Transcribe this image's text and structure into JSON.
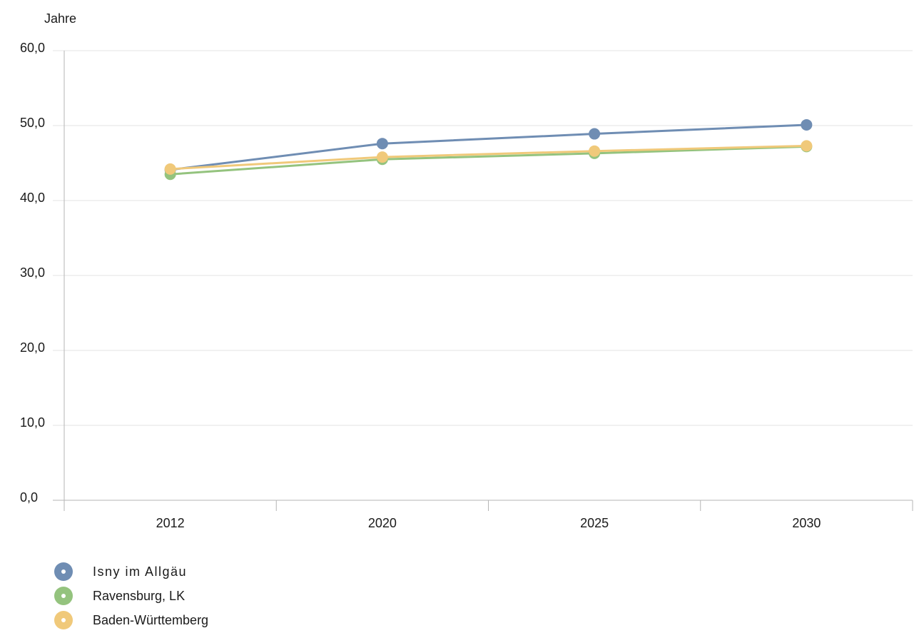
{
  "chart_data": {
    "type": "line",
    "unit_label": "Jahre",
    "categories": [
      "2012",
      "2020",
      "2025",
      "2030"
    ],
    "y_ticks": [
      "0,0",
      "10,0",
      "20,0",
      "30,0",
      "40,0",
      "50,0",
      "60,0"
    ],
    "ylim": [
      0,
      60
    ],
    "grid": true,
    "legend_position": "bottom-left",
    "series": [
      {
        "name": "Isny im Allgäu",
        "color": "#6f8db3",
        "values": [
          44.1,
          47.6,
          48.9,
          50.1
        ]
      },
      {
        "name": "Ravensburg, LK",
        "color": "#94c37e",
        "values": [
          43.5,
          45.5,
          46.3,
          47.2
        ]
      },
      {
        "name": "Baden-Württemberg",
        "color": "#f0c97a",
        "values": [
          44.2,
          45.8,
          46.6,
          47.3
        ]
      }
    ]
  }
}
